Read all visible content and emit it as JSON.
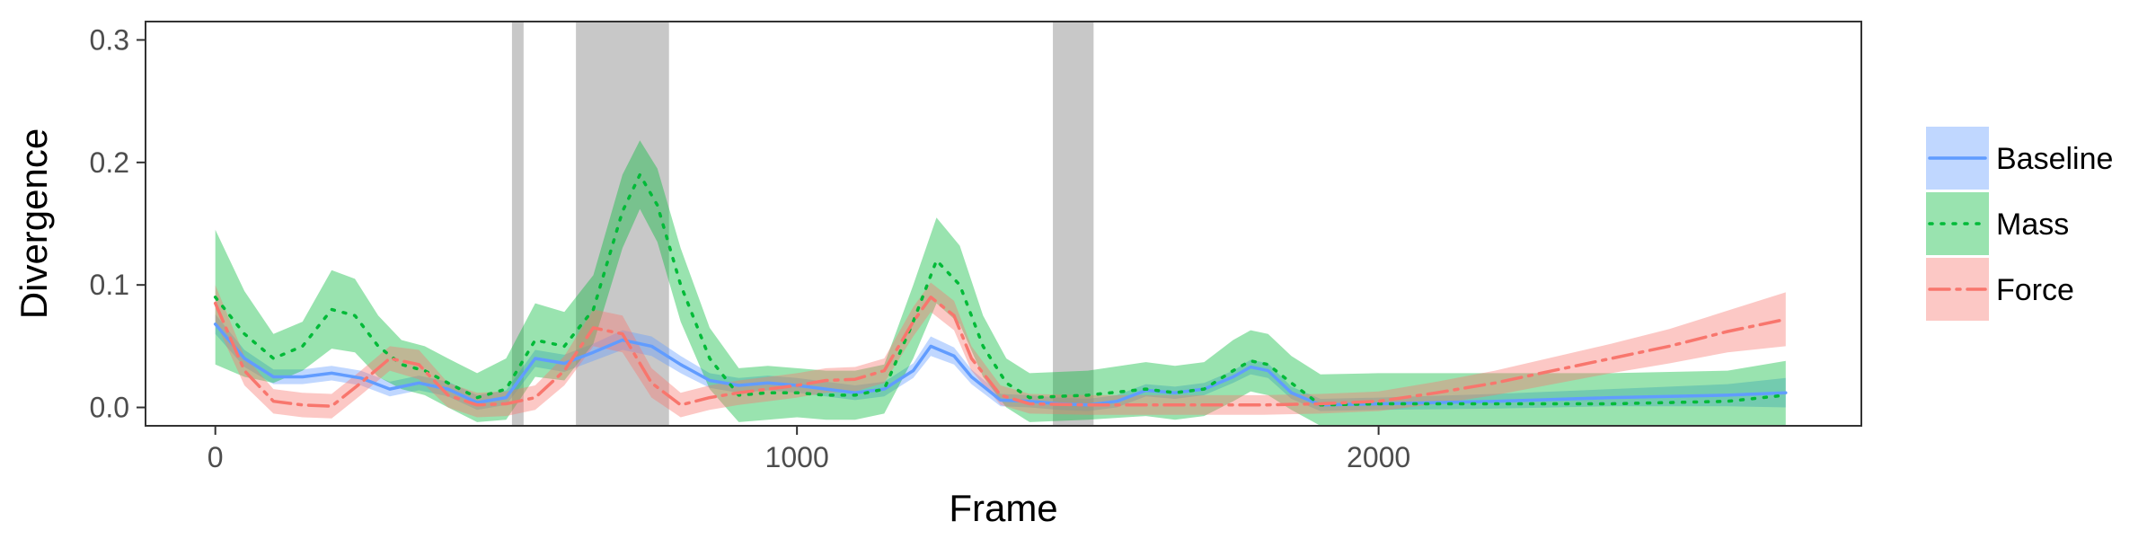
{
  "chart_data": {
    "type": "line",
    "xlabel": "Frame",
    "ylabel": "Divergence",
    "xlim": [
      -120,
      2830
    ],
    "ylim": [
      -0.015,
      0.315
    ],
    "x_ticks": [
      0,
      1000,
      2000
    ],
    "x_tick_labels": [
      "0",
      "1000",
      "2000"
    ],
    "y_ticks": [
      0.0,
      0.1,
      0.2,
      0.3
    ],
    "y_tick_labels": [
      "0.0",
      "0.1",
      "0.2",
      "0.3"
    ],
    "grid": false,
    "legend": {
      "placement": "right"
    },
    "shaded_regions": [
      {
        "x_start": 510,
        "x_end": 530
      },
      {
        "x_start": 620,
        "x_end": 780
      },
      {
        "x_start": 1440,
        "x_end": 1510
      }
    ],
    "series": [
      {
        "name": "Baseline",
        "color": "#619CFF",
        "line_style": "solid",
        "points": [
          [
            0,
            0.068
          ],
          [
            50,
            0.04
          ],
          [
            100,
            0.025
          ],
          [
            150,
            0.025
          ],
          [
            200,
            0.028
          ],
          [
            250,
            0.024
          ],
          [
            300,
            0.015
          ],
          [
            350,
            0.02
          ],
          [
            400,
            0.015
          ],
          [
            450,
            0.004
          ],
          [
            500,
            0.008
          ],
          [
            550,
            0.04
          ],
          [
            600,
            0.036
          ],
          [
            650,
            0.045
          ],
          [
            700,
            0.055
          ],
          [
            750,
            0.05
          ],
          [
            800,
            0.035
          ],
          [
            850,
            0.022
          ],
          [
            900,
            0.018
          ],
          [
            950,
            0.02
          ],
          [
            1000,
            0.018
          ],
          [
            1050,
            0.015
          ],
          [
            1100,
            0.012
          ],
          [
            1150,
            0.015
          ],
          [
            1200,
            0.03
          ],
          [
            1230,
            0.05
          ],
          [
            1270,
            0.042
          ],
          [
            1300,
            0.025
          ],
          [
            1350,
            0.006
          ],
          [
            1400,
            0.005
          ],
          [
            1450,
            0.003
          ],
          [
            1500,
            0.002
          ],
          [
            1550,
            0.005
          ],
          [
            1600,
            0.014
          ],
          [
            1650,
            0.012
          ],
          [
            1700,
            0.015
          ],
          [
            1750,
            0.025
          ],
          [
            1780,
            0.033
          ],
          [
            1810,
            0.03
          ],
          [
            1850,
            0.012
          ],
          [
            1900,
            0.002
          ],
          [
            2000,
            0.003
          ],
          [
            2200,
            0.005
          ],
          [
            2400,
            0.008
          ],
          [
            2600,
            0.01
          ],
          [
            2700,
            0.012
          ]
        ],
        "band_half_width": [
          0.008,
          0.007,
          0.006,
          0.006,
          0.006,
          0.006,
          0.006,
          0.006,
          0.006,
          0.006,
          0.006,
          0.007,
          0.007,
          0.007,
          0.008,
          0.008,
          0.007,
          0.006,
          0.006,
          0.006,
          0.006,
          0.006,
          0.006,
          0.006,
          0.006,
          0.008,
          0.007,
          0.006,
          0.005,
          0.005,
          0.005,
          0.005,
          0.005,
          0.005,
          0.005,
          0.005,
          0.005,
          0.006,
          0.006,
          0.005,
          0.005,
          0.005,
          0.006,
          0.007,
          0.009,
          0.012
        ]
      },
      {
        "name": "Mass",
        "color": "#00BA38",
        "line_style": "dotted",
        "points": [
          [
            0,
            0.09
          ],
          [
            50,
            0.06
          ],
          [
            100,
            0.04
          ],
          [
            150,
            0.05
          ],
          [
            200,
            0.08
          ],
          [
            240,
            0.075
          ],
          [
            280,
            0.05
          ],
          [
            320,
            0.035
          ],
          [
            360,
            0.03
          ],
          [
            400,
            0.02
          ],
          [
            450,
            0.008
          ],
          [
            500,
            0.015
          ],
          [
            550,
            0.055
          ],
          [
            600,
            0.05
          ],
          [
            650,
            0.08
          ],
          [
            700,
            0.16
          ],
          [
            730,
            0.19
          ],
          [
            760,
            0.165
          ],
          [
            800,
            0.1
          ],
          [
            850,
            0.04
          ],
          [
            900,
            0.01
          ],
          [
            950,
            0.012
          ],
          [
            1000,
            0.012
          ],
          [
            1050,
            0.01
          ],
          [
            1100,
            0.01
          ],
          [
            1150,
            0.015
          ],
          [
            1200,
            0.07
          ],
          [
            1240,
            0.12
          ],
          [
            1280,
            0.1
          ],
          [
            1320,
            0.05
          ],
          [
            1360,
            0.02
          ],
          [
            1400,
            0.008
          ],
          [
            1500,
            0.01
          ],
          [
            1600,
            0.015
          ],
          [
            1650,
            0.012
          ],
          [
            1700,
            0.015
          ],
          [
            1750,
            0.03
          ],
          [
            1780,
            0.038
          ],
          [
            1810,
            0.035
          ],
          [
            1850,
            0.02
          ],
          [
            1900,
            0.002
          ],
          [
            2000,
            0.003
          ],
          [
            2200,
            0.003
          ],
          [
            2400,
            0.003
          ],
          [
            2600,
            0.005
          ],
          [
            2700,
            0.01
          ]
        ],
        "band_half_width": [
          0.055,
          0.035,
          0.02,
          0.02,
          0.032,
          0.03,
          0.025,
          0.02,
          0.02,
          0.02,
          0.02,
          0.025,
          0.03,
          0.028,
          0.028,
          0.03,
          0.028,
          0.03,
          0.03,
          0.025,
          0.022,
          0.022,
          0.02,
          0.02,
          0.02,
          0.02,
          0.03,
          0.035,
          0.032,
          0.025,
          0.02,
          0.02,
          0.02,
          0.022,
          0.022,
          0.022,
          0.025,
          0.025,
          0.025,
          0.022,
          0.025,
          0.025,
          0.025,
          0.025,
          0.025,
          0.028
        ]
      },
      {
        "name": "Force",
        "color": "#F8766D",
        "line_style": "dashdot",
        "points": [
          [
            0,
            0.085
          ],
          [
            50,
            0.03
          ],
          [
            100,
            0.005
          ],
          [
            150,
            0.002
          ],
          [
            200,
            0.001
          ],
          [
            250,
            0.02
          ],
          [
            300,
            0.04
          ],
          [
            350,
            0.035
          ],
          [
            400,
            0.01
          ],
          [
            450,
            0.002
          ],
          [
            500,
            0.003
          ],
          [
            550,
            0.008
          ],
          [
            600,
            0.03
          ],
          [
            650,
            0.065
          ],
          [
            700,
            0.06
          ],
          [
            750,
            0.02
          ],
          [
            800,
            0.002
          ],
          [
            850,
            0.008
          ],
          [
            900,
            0.012
          ],
          [
            950,
            0.015
          ],
          [
            1000,
            0.018
          ],
          [
            1050,
            0.022
          ],
          [
            1100,
            0.023
          ],
          [
            1150,
            0.03
          ],
          [
            1200,
            0.07
          ],
          [
            1230,
            0.09
          ],
          [
            1270,
            0.075
          ],
          [
            1300,
            0.04
          ],
          [
            1350,
            0.01
          ],
          [
            1400,
            0.003
          ],
          [
            1500,
            0.002
          ],
          [
            1600,
            0.002
          ],
          [
            1700,
            0.002
          ],
          [
            1800,
            0.002
          ],
          [
            1900,
            0.003
          ],
          [
            2000,
            0.005
          ],
          [
            2100,
            0.012
          ],
          [
            2200,
            0.02
          ],
          [
            2300,
            0.03
          ],
          [
            2400,
            0.04
          ],
          [
            2500,
            0.05
          ],
          [
            2600,
            0.062
          ],
          [
            2700,
            0.072
          ]
        ],
        "band_half_width": [
          0.015,
          0.012,
          0.01,
          0.01,
          0.01,
          0.01,
          0.01,
          0.012,
          0.01,
          0.01,
          0.01,
          0.01,
          0.012,
          0.015,
          0.015,
          0.012,
          0.01,
          0.01,
          0.01,
          0.01,
          0.01,
          0.01,
          0.01,
          0.01,
          0.012,
          0.012,
          0.012,
          0.01,
          0.008,
          0.008,
          0.008,
          0.008,
          0.008,
          0.008,
          0.008,
          0.008,
          0.009,
          0.01,
          0.011,
          0.012,
          0.014,
          0.017,
          0.022
        ]
      }
    ]
  }
}
